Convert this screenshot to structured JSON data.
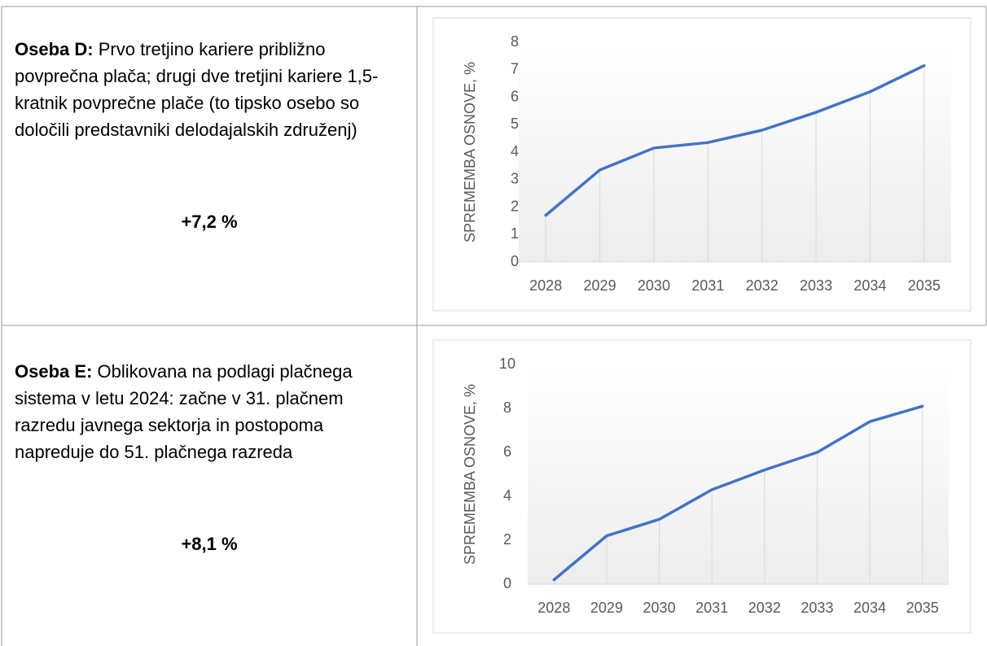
{
  "rows": [
    {
      "label": "Oseba D:",
      "text": "Prvo tretjino kariere približno povprečna plača; drugi dve tretjini kariere 1,5-kratnik povprečne plače (to tipsko osebo so določili predstavniki delodajalskih združenj)",
      "result": "+7,2 %"
    },
    {
      "label": "Oseba E:",
      "text": "Oblikovana na podlagi plačnega sistema v letu 2024: začne v 31. plačnem razredu javnega sektorja in postopoma napreduje do 51. plačnega razreda",
      "result": "+8,1 %"
    }
  ],
  "chart_data": [
    {
      "type": "line",
      "y_label": "SPREMEMBA OSNOVE, %",
      "categories": [
        "2028",
        "2029",
        "2030",
        "2031",
        "2032",
        "2033",
        "2034",
        "2035"
      ],
      "values": [
        1.7,
        3.35,
        4.15,
        4.35,
        4.8,
        5.45,
        6.2,
        7.15
      ],
      "color": "#4472c4",
      "ylim": [
        0,
        8
      ],
      "yticks": [
        0,
        1,
        2,
        3,
        4,
        5,
        6,
        7,
        8
      ],
      "drop_lines": true
    },
    {
      "type": "line",
      "y_label": "SPREMEMBA OSNOVE, %",
      "categories": [
        "2028",
        "2029",
        "2030",
        "2031",
        "2032",
        "2033",
        "2034",
        "2035"
      ],
      "values": [
        0.2,
        2.2,
        2.95,
        4.3,
        5.2,
        6.0,
        7.4,
        8.1
      ],
      "color": "#4472c4",
      "ylim": [
        0,
        10
      ],
      "yticks": [
        0,
        2,
        4,
        6,
        8,
        10
      ],
      "drop_lines": true
    }
  ]
}
